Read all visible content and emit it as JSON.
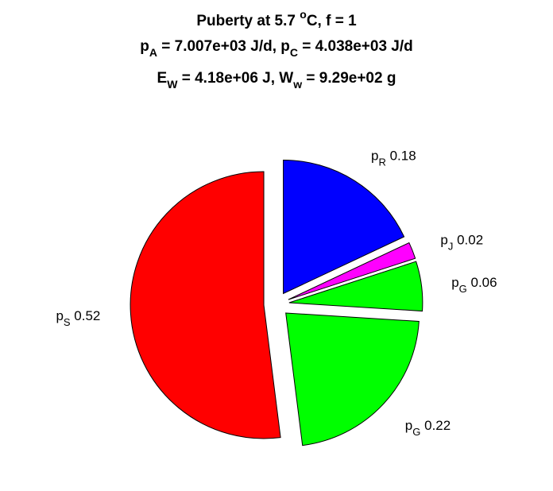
{
  "chart_data": {
    "type": "pie",
    "title": {
      "line1": {
        "prefix": "Puberty at 5.7 ",
        "sup": "o",
        "suffix": "C, f = 1"
      },
      "line2": {
        "a_sym": "p",
        "a_sub": "A",
        "a_val": " = 7.007e+03 J/d,  ",
        "c_sym": "p",
        "c_sub": "C",
        "c_val": " = 4.038e+03 J/d"
      },
      "line3": {
        "e_sym": "E",
        "e_sub": "W",
        "e_val": " = 4.18e+06 J, ",
        "w_sym": "W",
        "w_sub": "w",
        "w_val": " = 9.29e+02 g"
      }
    },
    "slices": [
      {
        "symbol": "p",
        "sub": "R",
        "value": 0.18,
        "label": "0.18",
        "color": "#0000ff",
        "exploded": true
      },
      {
        "symbol": "p",
        "sub": "J",
        "value": 0.02,
        "label": "0.02",
        "color": "#ff00ff",
        "exploded": true
      },
      {
        "symbol": "p",
        "sub": "G",
        "value": 0.06,
        "label": "0.06",
        "color": "#00ff00",
        "exploded": true
      },
      {
        "symbol": "p",
        "sub": "G",
        "value": 0.22,
        "label": "0.22",
        "color": "#00ff00",
        "exploded": true
      },
      {
        "symbol": "p",
        "sub": "S",
        "value": 0.52,
        "label": "0.52",
        "color": "#ff0000",
        "exploded": true
      }
    ]
  }
}
